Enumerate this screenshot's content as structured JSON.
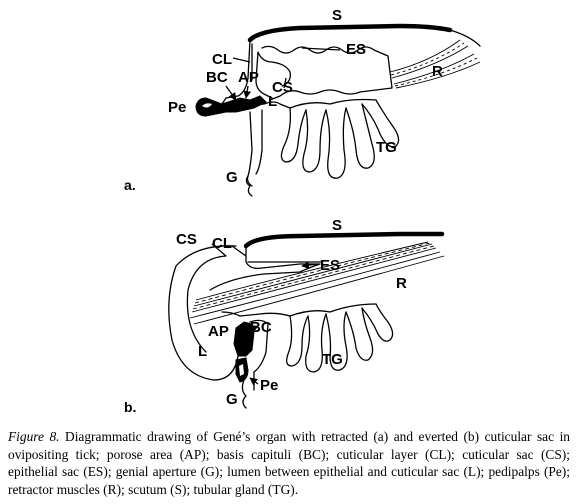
{
  "labels": {
    "a": {
      "S": "S",
      "CL": "CL",
      "ES": "ES",
      "BC": "BC",
      "AP": "AP",
      "CS": "CS",
      "R": "R",
      "L": "L",
      "Pe": "Pe",
      "TG": "TG",
      "G": "G"
    },
    "b": {
      "CS": "CS",
      "CL": "CL",
      "S": "S",
      "ES": "ES",
      "R": "R",
      "AP": "AP",
      "BC": "BC",
      "L": "L",
      "TG": "TG",
      "Pe": "Pe",
      "G": "G"
    }
  },
  "panels": {
    "a": "a.",
    "b": "b."
  },
  "caption": {
    "figure_label": "Figure 8.",
    "text": "Diagrammatic drawing of Gené’s organ with retracted (a) and everted (b) cuticular sac in ovipositing tick; porose area (AP); basis capituli (BC); cuticular layer (CL); cuticular sac (CS); epithelial sac (ES); genial aperture (G); lumen between epithelial and cuticular sac (L); pedipalps (Pe); retractor muscles (R); scutum (S); tubular gland (TG)."
  }
}
